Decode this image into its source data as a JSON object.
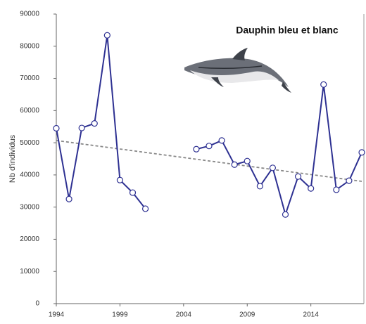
{
  "chart_data": {
    "type": "line",
    "title": "Dauphin bleu et blanc",
    "y_label": "Nb d'individus",
    "x": [
      1994,
      1995,
      1996,
      1997,
      1998,
      1999,
      2000,
      2001,
      2002,
      2003,
      2004,
      2005,
      2006,
      2007,
      2008,
      2009,
      2010,
      2011,
      2012,
      2013,
      2014,
      2015,
      2016,
      2017,
      2018
    ],
    "series": [
      {
        "color": "#2e3192",
        "values": [
          54500,
          32500,
          54600,
          56000,
          83400,
          38400,
          34500,
          29500,
          null,
          null,
          null,
          48000,
          49000,
          50700,
          43200,
          44300,
          36500,
          42200,
          27700,
          39500,
          35800,
          68100,
          35400,
          38200,
          47000
        ]
      }
    ],
    "trend": {
      "x": [
        1994,
        2018
      ],
      "values": [
        50700,
        38000
      ],
      "color": "#888888"
    },
    "xlim": [
      1994,
      2018
    ],
    "xticks": [
      1994,
      1999,
      2004,
      2009,
      2014
    ],
    "ylim": [
      0,
      90000
    ],
    "yticks": [
      0,
      10000,
      20000,
      30000,
      40000,
      50000,
      60000,
      70000,
      80000,
      90000
    ]
  }
}
